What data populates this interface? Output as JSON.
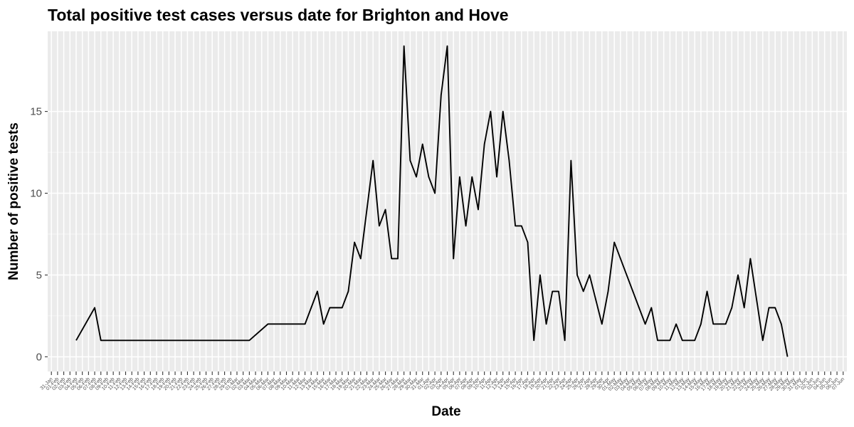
{
  "chart_data": {
    "type": "line",
    "title": "Total positive test cases versus date for Brighton and Hove",
    "xlabel": "Date",
    "ylabel": "Number of positive tests",
    "ylim": [
      -0.9,
      19.9
    ],
    "yticks": [
      0,
      5,
      10,
      15
    ],
    "grid": true,
    "legend": "none",
    "series_color": "#000000",
    "panel_color": "#EBEBEB",
    "grid_color": "#FFFFFF",
    "x_categories": [
      "31-Jan",
      "01-Feb",
      "02-Feb",
      "03-Feb",
      "04-Feb",
      "05-Feb",
      "06-Feb",
      "07-Feb",
      "08-Feb",
      "09-Feb",
      "10-Feb",
      "11-Feb",
      "12-Feb",
      "13-Feb",
      "14-Feb",
      "15-Feb",
      "16-Feb",
      "17-Feb",
      "18-Feb",
      "19-Feb",
      "20-Feb",
      "21-Feb",
      "22-Feb",
      "23-Feb",
      "24-Feb",
      "25-Feb",
      "26-Feb",
      "27-Feb",
      "28-Feb",
      "29-Feb",
      "01-Mar",
      "02-Mar",
      "03-Mar",
      "04-Mar",
      "05-Mar",
      "06-Mar",
      "07-Mar",
      "08-Mar",
      "09-Mar",
      "10-Mar",
      "11-Mar",
      "12-Mar",
      "13-Mar",
      "14-Mar",
      "15-Mar",
      "16-Mar",
      "17-Mar",
      "18-Mar",
      "19-Mar",
      "20-Mar",
      "21-Mar",
      "22-Mar",
      "23-Mar",
      "24-Mar",
      "25-Mar",
      "26-Mar",
      "27-Mar",
      "28-Mar",
      "29-Mar",
      "30-Mar",
      "31-Mar",
      "01-Apr",
      "02-Apr",
      "03-Apr",
      "04-Apr",
      "05-Apr",
      "06-Apr",
      "07-Apr",
      "08-Apr",
      "09-Apr",
      "10-Apr",
      "11-Apr",
      "12-Apr",
      "13-Apr",
      "14-Apr",
      "15-Apr",
      "16-Apr",
      "17-Apr",
      "18-Apr",
      "19-Apr",
      "20-Apr",
      "21-Apr",
      "22-Apr",
      "23-Apr",
      "24-Apr",
      "25-Apr",
      "26-Apr",
      "27-Apr",
      "28-Apr",
      "29-Apr",
      "30-Apr",
      "01-May",
      "02-May",
      "03-May",
      "04-May",
      "05-May",
      "06-May",
      "07-May",
      "08-May",
      "09-May",
      "10-May",
      "11-May",
      "12-May",
      "13-May",
      "14-May",
      "15-May",
      "16-May",
      "17-May",
      "18-May",
      "19-May",
      "20-May",
      "21-May",
      "22-May",
      "23-May",
      "24-May",
      "25-May",
      "26-May",
      "27-May",
      "28-May",
      "29-May",
      "30-May",
      "31-May",
      "01-Jun",
      "02-Jun",
      "03-Jun",
      "04-Jun",
      "05-Jun",
      "06-Jun",
      "07-Jun"
    ],
    "points": [
      {
        "x": "04-Feb",
        "y": 1
      },
      {
        "x": "07-Feb",
        "y": 3
      },
      {
        "x": "08-Feb",
        "y": 1
      },
      {
        "x": "03-Mar",
        "y": 1
      },
      {
        "x": "06-Mar",
        "y": 2
      },
      {
        "x": "12-Mar",
        "y": 2
      },
      {
        "x": "14-Mar",
        "y": 4
      },
      {
        "x": "15-Mar",
        "y": 2
      },
      {
        "x": "16-Mar",
        "y": 3
      },
      {
        "x": "18-Mar",
        "y": 3
      },
      {
        "x": "19-Mar",
        "y": 4
      },
      {
        "x": "20-Mar",
        "y": 7
      },
      {
        "x": "21-Mar",
        "y": 6
      },
      {
        "x": "23-Mar",
        "y": 12
      },
      {
        "x": "24-Mar",
        "y": 8
      },
      {
        "x": "25-Mar",
        "y": 9
      },
      {
        "x": "26-Mar",
        "y": 6
      },
      {
        "x": "27-Mar",
        "y": 6
      },
      {
        "x": "28-Mar",
        "y": 19
      },
      {
        "x": "29-Mar",
        "y": 12
      },
      {
        "x": "30-Mar",
        "y": 11
      },
      {
        "x": "31-Mar",
        "y": 13
      },
      {
        "x": "01-Apr",
        "y": 11
      },
      {
        "x": "02-Apr",
        "y": 10
      },
      {
        "x": "03-Apr",
        "y": 16
      },
      {
        "x": "04-Apr",
        "y": 19
      },
      {
        "x": "05-Apr",
        "y": 6
      },
      {
        "x": "06-Apr",
        "y": 11
      },
      {
        "x": "07-Apr",
        "y": 8
      },
      {
        "x": "08-Apr",
        "y": 11
      },
      {
        "x": "09-Apr",
        "y": 9
      },
      {
        "x": "10-Apr",
        "y": 13
      },
      {
        "x": "11-Apr",
        "y": 15
      },
      {
        "x": "12-Apr",
        "y": 11
      },
      {
        "x": "13-Apr",
        "y": 15
      },
      {
        "x": "14-Apr",
        "y": 12
      },
      {
        "x": "15-Apr",
        "y": 8
      },
      {
        "x": "16-Apr",
        "y": 8
      },
      {
        "x": "17-Apr",
        "y": 7
      },
      {
        "x": "18-Apr",
        "y": 1
      },
      {
        "x": "19-Apr",
        "y": 5
      },
      {
        "x": "20-Apr",
        "y": 2
      },
      {
        "x": "21-Apr",
        "y": 4
      },
      {
        "x": "22-Apr",
        "y": 4
      },
      {
        "x": "23-Apr",
        "y": 1
      },
      {
        "x": "24-Apr",
        "y": 12
      },
      {
        "x": "25-Apr",
        "y": 5
      },
      {
        "x": "26-Apr",
        "y": 4
      },
      {
        "x": "27-Apr",
        "y": 5
      },
      {
        "x": "29-Apr",
        "y": 2
      },
      {
        "x": "30-Apr",
        "y": 4
      },
      {
        "x": "01-May",
        "y": 7
      },
      {
        "x": "06-May",
        "y": 2
      },
      {
        "x": "07-May",
        "y": 3
      },
      {
        "x": "08-May",
        "y": 1
      },
      {
        "x": "10-May",
        "y": 1
      },
      {
        "x": "11-May",
        "y": 2
      },
      {
        "x": "12-May",
        "y": 1
      },
      {
        "x": "14-May",
        "y": 1
      },
      {
        "x": "15-May",
        "y": 2
      },
      {
        "x": "16-May",
        "y": 4
      },
      {
        "x": "17-May",
        "y": 2
      },
      {
        "x": "19-May",
        "y": 2
      },
      {
        "x": "20-May",
        "y": 3
      },
      {
        "x": "21-May",
        "y": 5
      },
      {
        "x": "22-May",
        "y": 3
      },
      {
        "x": "23-May",
        "y": 6
      },
      {
        "x": "25-May",
        "y": 1
      },
      {
        "x": "26-May",
        "y": 3
      },
      {
        "x": "27-May",
        "y": 3
      },
      {
        "x": "28-May",
        "y": 2
      },
      {
        "x": "29-May",
        "y": 0
      }
    ]
  }
}
